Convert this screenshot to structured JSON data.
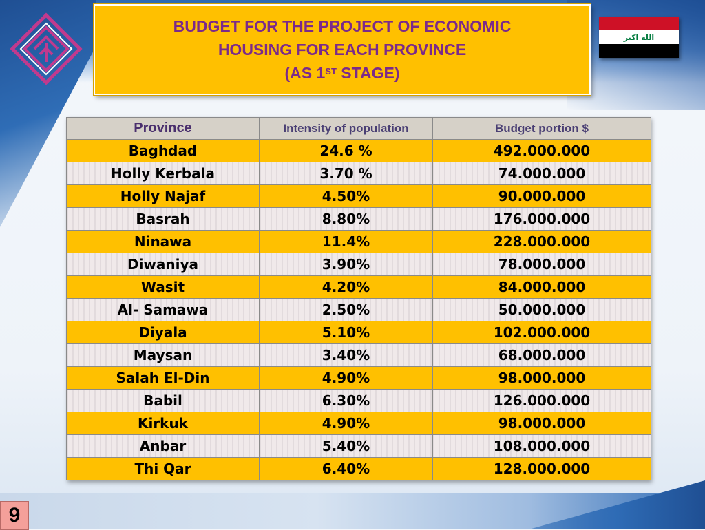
{
  "title": {
    "line1": "BUDGET FOR THE PROJECT OF ECONOMIC",
    "line2": "HOUSING FOR EACH PROVINCE",
    "line3_pre": "(AS 1",
    "line3_sup": "ST",
    "line3_post": " STAGE)"
  },
  "flag": {
    "script": "الله اكبر"
  },
  "table": {
    "headers": [
      "Province",
      "Intensity of population",
      "Budget portion $"
    ],
    "rows": [
      [
        "Baghdad",
        "24.6 %",
        "492.000.000"
      ],
      [
        "Holly Kerbala",
        "3.70 %",
        "74.000.000"
      ],
      [
        "Holly Najaf",
        "4.50%",
        "90.000.000"
      ],
      [
        "Basrah",
        "8.80%",
        "176.000.000"
      ],
      [
        "Ninawa",
        "11.4%",
        "228.000.000"
      ],
      [
        "Diwaniya",
        "3.90%",
        "78.000.000"
      ],
      [
        "Wasit",
        "4.20%",
        "84.000.000"
      ],
      [
        "Al- Samawa",
        "2.50%",
        "50.000.000"
      ],
      [
        "Diyala",
        "5.10%",
        "102.000.000"
      ],
      [
        "Maysan",
        "3.40%",
        "68.000.000"
      ],
      [
        "Salah El-Din",
        "4.90%",
        "98.000.000"
      ],
      [
        "Babil",
        "6.30%",
        "126.000.000"
      ],
      [
        "Kirkuk",
        "4.90%",
        "98.000.000"
      ],
      [
        "Anbar",
        "5.40%",
        "108.000.000"
      ],
      [
        "Thi Qar",
        "6.40%",
        "128.000.000"
      ]
    ]
  },
  "page_number": "9",
  "colors": {
    "accent": "#ffc000",
    "title_text": "#7b2a8a",
    "logo": "#c03a8e"
  }
}
